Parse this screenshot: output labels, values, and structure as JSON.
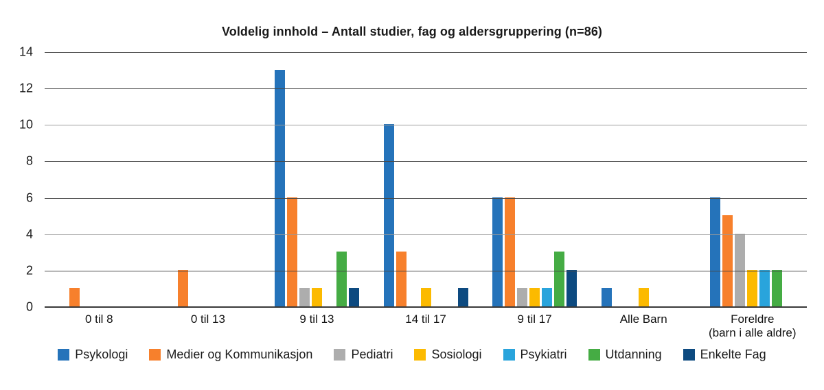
{
  "chart_data": {
    "type": "bar",
    "title": "Voldelig innhold – Antall studier, fag og aldersgruppering (n=86)",
    "categories": [
      "0 til 8",
      "0 til 13",
      "9 til 13",
      "14 til 17",
      "9 til 17",
      "Alle Barn",
      "Foreldre\n(barn i alle aldre)"
    ],
    "series": [
      {
        "name": "Psykologi",
        "color": "#2573BA",
        "values": [
          0,
          0,
          13,
          10,
          6,
          1,
          6
        ]
      },
      {
        "name": "Medier og Kommunikasjon",
        "color": "#F7802C",
        "values": [
          1,
          2,
          6,
          3,
          6,
          0,
          5
        ]
      },
      {
        "name": "Pediatri",
        "color": "#ADADAD",
        "values": [
          0,
          0,
          1,
          0,
          1,
          0,
          4
        ]
      },
      {
        "name": "Sosiologi",
        "color": "#FCBA00",
        "values": [
          0,
          0,
          1,
          1,
          1,
          1,
          2
        ]
      },
      {
        "name": "Psykiatri",
        "color": "#29A4DC",
        "values": [
          0,
          0,
          0,
          0,
          1,
          0,
          2
        ]
      },
      {
        "name": "Utdanning",
        "color": "#45AC44",
        "values": [
          0,
          0,
          3,
          0,
          3,
          0,
          2
        ]
      },
      {
        "name": "Enkelte Fag",
        "color": "#0D4A80",
        "values": [
          0,
          0,
          1,
          1,
          2,
          0,
          0
        ]
      }
    ],
    "xlabel": "",
    "ylabel": "",
    "ylim": [
      0,
      14
    ],
    "ytick_step": 2,
    "yticks": [
      0,
      2,
      4,
      6,
      8,
      10,
      12,
      14
    ],
    "grid": "horizontal",
    "legend_position": "bottom",
    "axis_color": "#383838",
    "gridline_color": "#474747",
    "light_gridlines_at": [
      10,
      4
    ]
  }
}
